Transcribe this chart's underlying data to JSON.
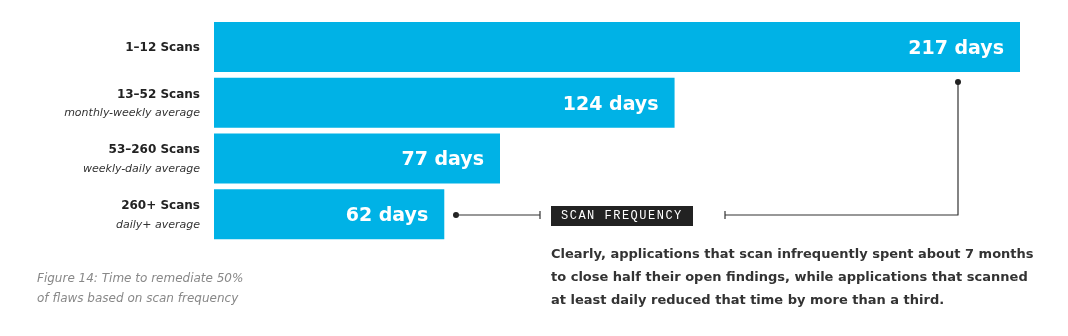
{
  "chart_data": {
    "type": "bar",
    "orientation": "horizontal",
    "categories": [
      "1–12 Scans",
      "13–52 Scans\nmonthly-weekly average",
      "53–260 Scans\nweekly-daily average",
      "260+ Scans\ndaily+ average"
    ],
    "values": [
      217,
      124,
      77,
      62
    ],
    "color": "#00b2e6",
    "value_labels": [
      "217 days",
      "124 days",
      "77 days",
      "62 days"
    ],
    "xlim": [
      0,
      217
    ],
    "tick_labels": "y",
    "annotations": [
      "Figure 14: Time to remediate 50% of flaws based on scan frequency",
      "SCAN FREQUENCY",
      "Clearly, applications that scan infrequently spent about 7 months to close half their open findings, while applications that scanned at least daily reduced that time by more than a third."
    ]
  }
}
